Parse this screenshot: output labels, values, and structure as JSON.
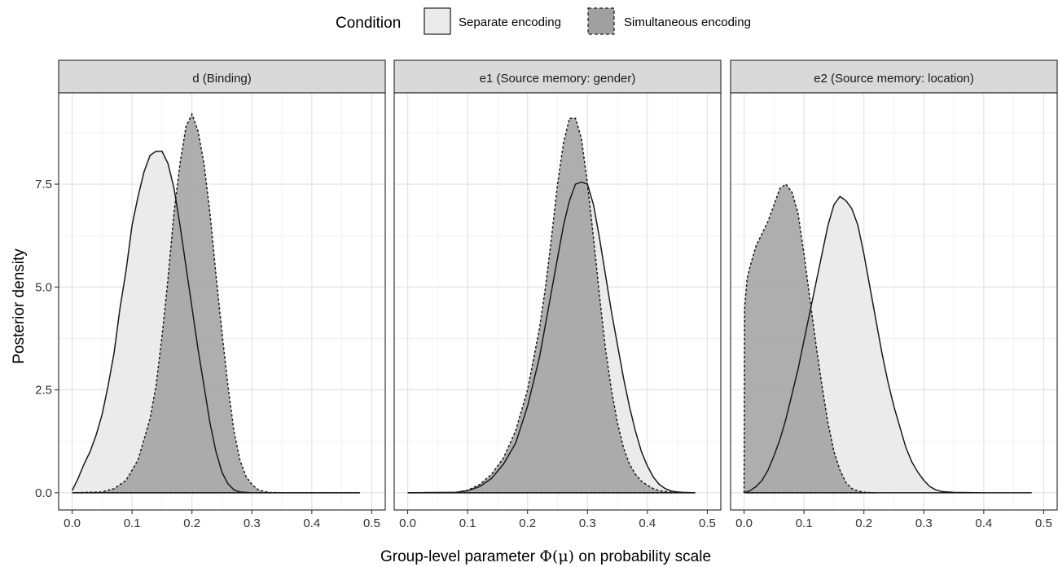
{
  "legend": {
    "title": "Condition",
    "items": [
      {
        "label": "Separate encoding",
        "fill": "#ebebeb",
        "dash": "solid"
      },
      {
        "label": "Simultaneous encoding",
        "fill": "#a0a0a0",
        "dash": "dashed"
      }
    ]
  },
  "axes": {
    "xlabel_pre": "Group-level parameter ",
    "xlabel_sym": "Φ(μ)",
    "xlabel_post": " on probability scale",
    "ylabel": "Posterior density",
    "x_ticks": [
      "0.0",
      "0.1",
      "0.2",
      "0.3",
      "0.4",
      "0.5"
    ],
    "y_ticks": [
      "0.0",
      "2.5",
      "5.0",
      "7.5"
    ]
  },
  "chart_data": {
    "type": "area",
    "xlim": [
      0,
      0.5
    ],
    "ylim": [
      0,
      9.3
    ],
    "x_ticks": [
      0,
      0.1,
      0.2,
      0.3,
      0.4,
      0.5
    ],
    "y_ticks": [
      0,
      2.5,
      5,
      7.5
    ],
    "grid": true,
    "legend_position": "top",
    "panels": [
      {
        "title": "d (Binding)",
        "series": [
          {
            "name": "Separate encoding",
            "x": [
              0,
              0.01,
              0.02,
              0.03,
              0.04,
              0.05,
              0.06,
              0.07,
              0.08,
              0.09,
              0.1,
              0.11,
              0.12,
              0.13,
              0.14,
              0.15,
              0.16,
              0.17,
              0.18,
              0.19,
              0.2,
              0.21,
              0.22,
              0.23,
              0.24,
              0.25,
              0.26,
              0.27,
              0.28,
              0.3,
              0.35,
              0.4,
              0.48
            ],
            "y": [
              0.05,
              0.35,
              0.7,
              1.0,
              1.4,
              1.9,
              2.6,
              3.4,
              4.5,
              5.4,
              6.5,
              7.2,
              7.8,
              8.2,
              8.3,
              8.3,
              8.0,
              7.4,
              6.5,
              5.5,
              4.5,
              3.5,
              2.6,
              1.7,
              1.0,
              0.5,
              0.22,
              0.07,
              0.02,
              0,
              0,
              0,
              0
            ]
          },
          {
            "name": "Simultaneous encoding",
            "x": [
              0,
              0.05,
              0.07,
              0.09,
              0.11,
              0.13,
              0.14,
              0.15,
              0.16,
              0.17,
              0.18,
              0.19,
              0.2,
              0.21,
              0.22,
              0.23,
              0.24,
              0.25,
              0.26,
              0.27,
              0.28,
              0.29,
              0.3,
              0.31,
              0.32,
              0.33,
              0.35,
              0.4,
              0.48
            ],
            "y": [
              0,
              0.02,
              0.1,
              0.3,
              0.8,
              1.8,
              2.6,
              3.8,
              5.2,
              6.8,
              8.0,
              8.9,
              9.2,
              8.8,
              8.0,
              6.8,
              5.3,
              3.9,
              2.6,
              1.5,
              0.8,
              0.4,
              0.2,
              0.08,
              0.03,
              0.01,
              0,
              0,
              0
            ]
          }
        ]
      },
      {
        "title": "e1 (Source memory: gender)",
        "series": [
          {
            "name": "Separate encoding",
            "x": [
              0,
              0.08,
              0.1,
              0.12,
              0.14,
              0.16,
              0.18,
              0.2,
              0.22,
              0.24,
              0.26,
              0.27,
              0.28,
              0.29,
              0.3,
              0.31,
              0.32,
              0.33,
              0.34,
              0.35,
              0.36,
              0.37,
              0.38,
              0.39,
              0.4,
              0.41,
              0.42,
              0.43,
              0.44,
              0.45,
              0.46,
              0.48
            ],
            "y": [
              0,
              0.01,
              0.05,
              0.15,
              0.35,
              0.7,
              1.2,
              2.1,
              3.3,
              4.9,
              6.5,
              7.1,
              7.5,
              7.55,
              7.5,
              7.0,
              6.2,
              5.3,
              4.4,
              3.6,
              2.8,
              2.1,
              1.5,
              1.0,
              0.65,
              0.38,
              0.2,
              0.1,
              0.04,
              0.02,
              0.01,
              0
            ]
          },
          {
            "name": "Simultaneous encoding",
            "x": [
              0,
              0.08,
              0.1,
              0.12,
              0.14,
              0.16,
              0.18,
              0.2,
              0.22,
              0.23,
              0.24,
              0.25,
              0.26,
              0.27,
              0.28,
              0.29,
              0.3,
              0.31,
              0.32,
              0.33,
              0.34,
              0.35,
              0.36,
              0.37,
              0.38,
              0.39,
              0.4,
              0.41,
              0.42,
              0.44,
              0.48
            ],
            "y": [
              0,
              0.01,
              0.06,
              0.2,
              0.45,
              0.85,
              1.5,
              2.5,
              4.0,
              5.0,
              6.2,
              7.5,
              8.5,
              9.1,
              9.1,
              8.6,
              7.5,
              6.2,
              4.8,
              3.5,
              2.5,
              1.7,
              1.1,
              0.7,
              0.45,
              0.28,
              0.18,
              0.1,
              0.05,
              0.01,
              0
            ]
          }
        ]
      },
      {
        "title": "e2 (Source memory: location)",
        "series": [
          {
            "name": "Separate encoding",
            "x": [
              0,
              0.01,
              0.02,
              0.03,
              0.04,
              0.05,
              0.06,
              0.07,
              0.08,
              0.09,
              0.1,
              0.11,
              0.12,
              0.13,
              0.14,
              0.15,
              0.16,
              0.17,
              0.18,
              0.19,
              0.2,
              0.21,
              0.22,
              0.23,
              0.24,
              0.25,
              0.26,
              0.27,
              0.28,
              0.29,
              0.3,
              0.31,
              0.32,
              0.33,
              0.35,
              0.4,
              0.48
            ],
            "y": [
              0.0,
              0.05,
              0.15,
              0.3,
              0.55,
              0.9,
              1.3,
              1.8,
              2.4,
              3.0,
              3.7,
              4.4,
              5.1,
              5.8,
              6.5,
              7.0,
              7.2,
              7.1,
              6.9,
              6.5,
              5.8,
              5.0,
              4.2,
              3.4,
              2.7,
              2.1,
              1.6,
              1.1,
              0.75,
              0.5,
              0.3,
              0.15,
              0.07,
              0.03,
              0.01,
              0,
              0
            ]
          },
          {
            "name": "Simultaneous encoding",
            "x": [
              0,
              0.001,
              0.005,
              0.01,
              0.02,
              0.03,
              0.04,
              0.05,
              0.06,
              0.07,
              0.08,
              0.09,
              0.1,
              0.11,
              0.12,
              0.13,
              0.14,
              0.15,
              0.16,
              0.17,
              0.18,
              0.19,
              0.2,
              0.21,
              0.22
            ],
            "y": [
              0,
              4.5,
              5.2,
              5.5,
              6.0,
              6.3,
              6.6,
              7.0,
              7.4,
              7.5,
              7.3,
              6.8,
              5.8,
              4.7,
              3.6,
              2.6,
              1.7,
              1.0,
              0.55,
              0.25,
              0.1,
              0.04,
              0.015,
              0.005,
              0
            ]
          }
        ]
      }
    ]
  }
}
